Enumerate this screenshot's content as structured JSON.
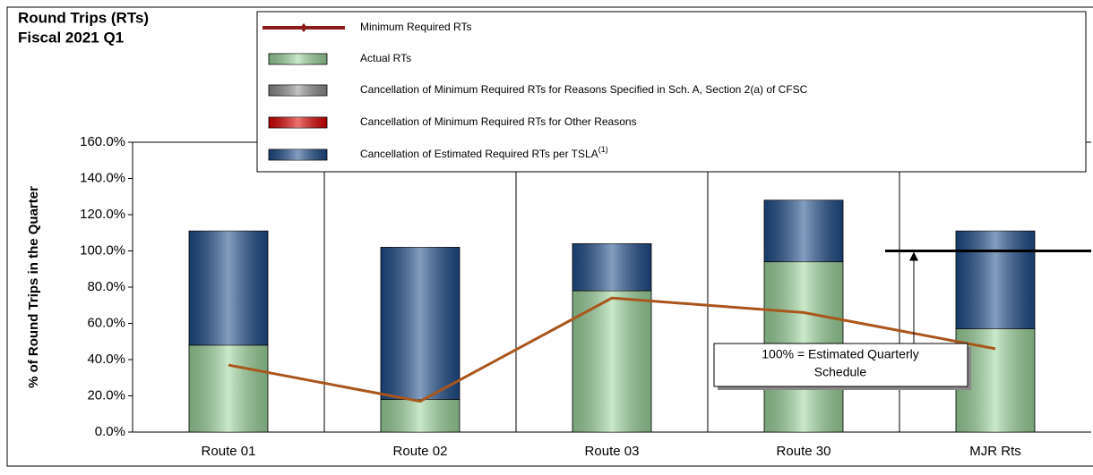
{
  "chart_data": {
    "type": "stacked_bar_line",
    "title": [
      "Round Trips (RTs)",
      "Fiscal 2021 Q1"
    ],
    "y_label": "% of Round Trips in the Quarter",
    "categories": [
      "Route 01",
      "Route 02",
      "Route 03",
      "Route 30",
      "MJR Rts"
    ],
    "series": [
      {
        "name": "Minimum Required RTs",
        "kind": "line",
        "color": "#a8561c",
        "values": [
          37,
          17,
          74,
          66,
          46
        ]
      },
      {
        "name": "Actual RTs",
        "kind": "bar",
        "color": "#9fd89f",
        "values": [
          48,
          18,
          78,
          94,
          57
        ]
      },
      {
        "name": "Cancellation of Minimum Required RTs for Reasons Specified in Sch. A, Section 2(a) of CFSC",
        "kind": "bar",
        "color": "#909090",
        "values": [
          0,
          0,
          0,
          0,
          0
        ]
      },
      {
        "name": "Cancellation of Minimum Required RTs for Other Reasons",
        "kind": "bar",
        "color": "#e00000",
        "values": [
          0,
          0,
          0,
          0,
          0
        ]
      },
      {
        "name": "Cancellation of Estimated Required RTs per TSLA",
        "name_superscript": "(1)",
        "kind": "bar",
        "color": "#1f4e8c",
        "values": [
          63,
          84,
          26,
          34,
          54
        ]
      }
    ],
    "ylim": [
      0,
      160
    ],
    "yticks": [
      {
        "value": 0,
        "label": "0.0%"
      },
      {
        "value": 20,
        "label": "20.0%"
      },
      {
        "value": 40,
        "label": "40.0%"
      },
      {
        "value": 60,
        "label": "60.0%"
      },
      {
        "value": 80,
        "label": "80.0%"
      },
      {
        "value": 100,
        "label": "100.0%"
      },
      {
        "value": 120,
        "label": "120.0%"
      },
      {
        "value": 140,
        "label": "140.0%"
      },
      {
        "value": 160,
        "label": "160.0%"
      }
    ],
    "reference_line": 100,
    "annotation": [
      "100% = Estimated Quarterly",
      "Schedule"
    ]
  }
}
